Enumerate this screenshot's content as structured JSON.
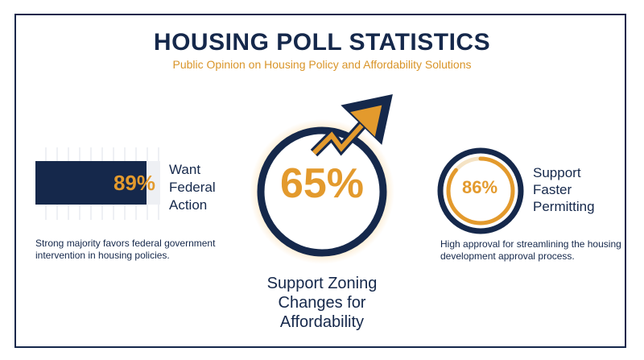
{
  "header": {
    "title": "HOUSING POLL STATISTICS",
    "subtitle": "Public Opinion on Housing Policy and Affordability Solutions"
  },
  "colors": {
    "navy": "#15284b",
    "orange": "#e39a2d",
    "subtitle_orange": "#d9952a"
  },
  "stats": {
    "federal": {
      "value_text": "89%",
      "percent": 89,
      "label_lines": [
        "Want",
        "Federal",
        "Action"
      ],
      "description": "Strong majority favors federal government intervention in housing policies."
    },
    "zoning": {
      "value_text": "65%",
      "percent": 65,
      "label_lines": [
        "Support Zoning",
        "Changes for",
        "Affordability"
      ],
      "icon": "trend-up-arrow-icon"
    },
    "permitting": {
      "value_text": "86%",
      "percent": 86,
      "label_lines": [
        "Support",
        "Faster",
        "Permitting"
      ],
      "description": "High approval for streamlining the housing development approval process."
    }
  }
}
